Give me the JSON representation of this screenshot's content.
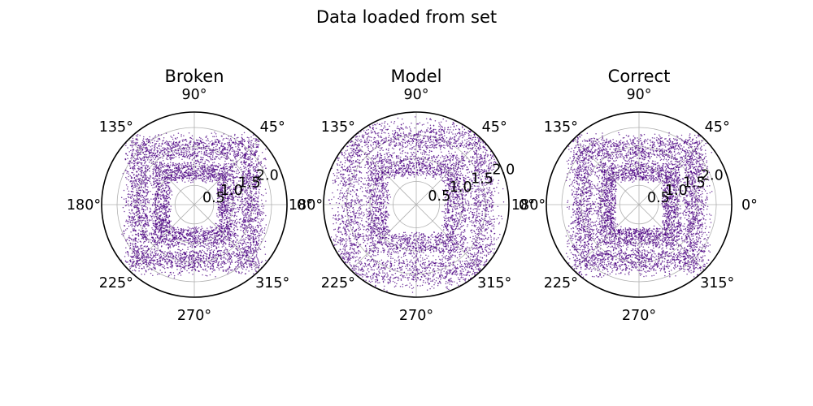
{
  "figure": {
    "title": "Data loaded from set"
  },
  "colors": {
    "points": "#4b0082",
    "grid": "#b0b0b0",
    "spine": "#000000",
    "background": "#ffffff"
  },
  "chart_data": [
    {
      "type": "scatter",
      "projection": "polar",
      "title": "Broken",
      "rlim": [
        0,
        2.4
      ],
      "r_ticks": [
        0.5,
        1.0,
        1.5,
        2.0
      ],
      "r_tick_labels": [
        "0.5",
        "1.0",
        "1.5",
        "2.0"
      ],
      "theta_ticks_deg": [
        0,
        45,
        90,
        135,
        180,
        225,
        270,
        315
      ],
      "theta_tick_labels": [
        "0°",
        "45°",
        "90°",
        "135°",
        "180°",
        "225°",
        "270°",
        "315°"
      ],
      "grid": true,
      "series": [
        {
          "color": "#4b0082",
          "point_count": 6000,
          "pattern": "square ring centered on origin, points filling a band between half-widths 0.6 and 1.85 with denser edges near half-widths 0.8 and 1.5"
        }
      ]
    },
    {
      "type": "scatter",
      "projection": "polar",
      "title": "Model",
      "rlim": [
        0,
        2.0
      ],
      "r_ticks": [
        0.5,
        1.0,
        1.5,
        2.0
      ],
      "r_tick_labels": [
        "0.5",
        "1.0",
        "1.5",
        "2.0"
      ],
      "theta_ticks_deg": [
        0,
        45,
        90,
        135,
        180,
        225,
        270,
        315
      ],
      "theta_tick_labels": [
        "0°",
        "45°",
        "90°",
        "135°",
        "180°",
        "225°",
        "270°",
        "315°"
      ],
      "grid": true,
      "series": [
        {
          "color": "#4b0082",
          "point_count": 6000,
          "pattern": "square ring centered on origin, points filling a band between half-widths 0.6 and 1.85 with denser edges near half-widths 0.8 and 1.5"
        }
      ]
    },
    {
      "type": "scatter",
      "projection": "polar",
      "title": "Correct",
      "rlim": [
        0,
        2.4
      ],
      "r_ticks": [
        0.5,
        1.0,
        1.5,
        2.0
      ],
      "r_tick_labels": [
        "0.5",
        "1.0",
        "1.5",
        "2.0"
      ],
      "theta_ticks_deg": [
        0,
        45,
        90,
        135,
        180,
        225,
        270,
        315
      ],
      "theta_tick_labels": [
        "0°",
        "45°",
        "90°",
        "135°",
        "180°",
        "225°",
        "270°",
        "315°"
      ],
      "grid": true,
      "series": [
        {
          "color": "#4b0082",
          "point_count": 6000,
          "pattern": "square ring centered on origin, points filling a band between half-widths 0.6 and 1.85 with denser edges near half-widths 0.8 and 1.5"
        }
      ]
    }
  ]
}
